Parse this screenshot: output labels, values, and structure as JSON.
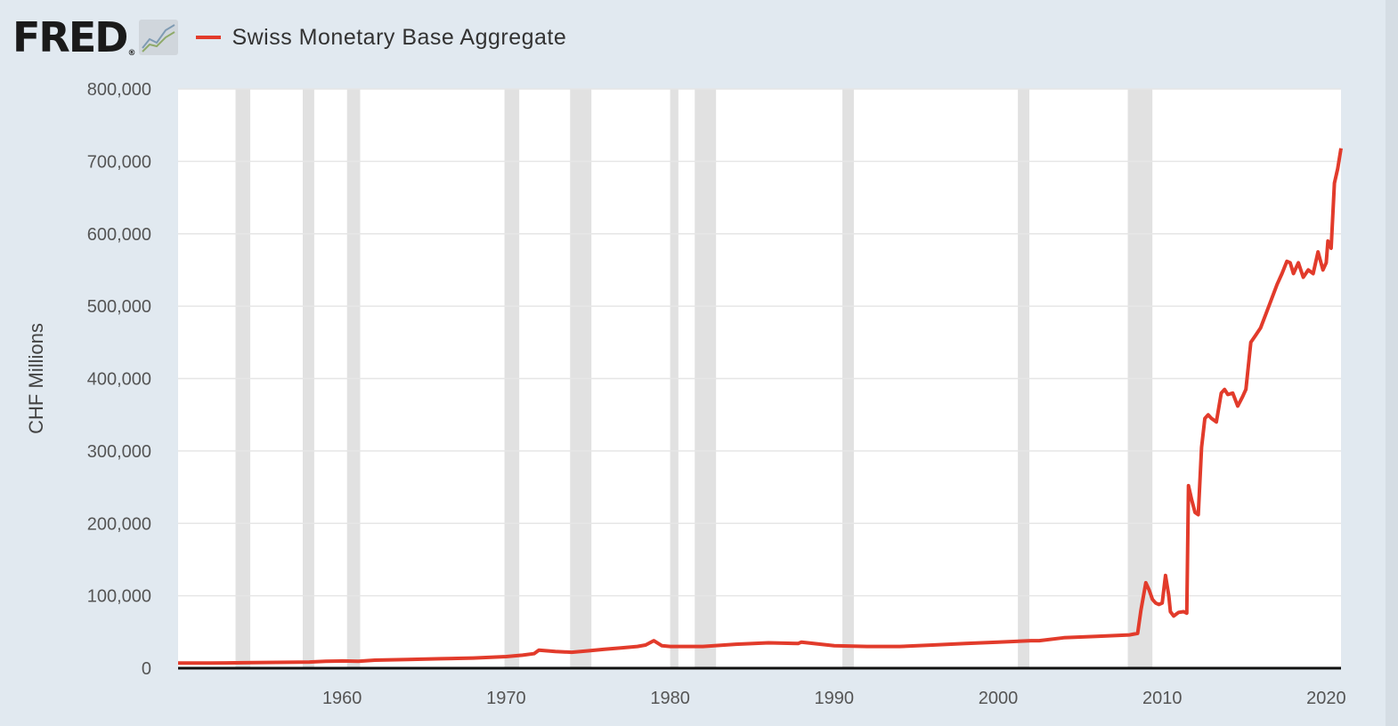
{
  "header": {
    "logo_text": "FRED",
    "logo_reg": "®",
    "logo_icon": "trend-graph-icon",
    "legend_label": "Swiss Monetary Base Aggregate"
  },
  "colors": {
    "background": "#e1e9f0",
    "plot_bg": "#ffffff",
    "line": "#e23b2b",
    "recession": "#e1e1e1",
    "grid": "#e6e6e6"
  },
  "chart_data": {
    "type": "line",
    "title": "",
    "xlabel": "",
    "ylabel": "CHF Millions",
    "xlim": [
      1950.0,
      2020.9
    ],
    "ylim": [
      0,
      800000
    ],
    "y_ticks": [
      0,
      100000,
      200000,
      300000,
      400000,
      500000,
      600000,
      700000,
      800000
    ],
    "y_tick_labels": [
      "0",
      "100,000",
      "200,000",
      "300,000",
      "400,000",
      "500,000",
      "600,000",
      "700,000",
      "800,000"
    ],
    "x_ticks": [
      1960,
      1970,
      1980,
      1990,
      2000,
      2010,
      2020
    ],
    "x_tick_labels": [
      "1960",
      "1970",
      "1980",
      "1990",
      "2000",
      "2010",
      "2020"
    ],
    "grid": true,
    "legend_position": "top-left",
    "recessions": [
      [
        1953.5,
        1954.4
      ],
      [
        1957.6,
        1958.3
      ],
      [
        1960.3,
        1961.1
      ],
      [
        1969.9,
        1970.8
      ],
      [
        1973.9,
        1975.2
      ],
      [
        1980.0,
        1980.5
      ],
      [
        1981.5,
        1982.8
      ],
      [
        1990.5,
        1991.2
      ],
      [
        2001.2,
        2001.9
      ],
      [
        2007.9,
        2009.4
      ]
    ],
    "series": [
      {
        "name": "Swiss Monetary Base Aggregate",
        "x": [
          1950.0,
          1952.0,
          1954.0,
          1956.0,
          1958.0,
          1959.0,
          1960.0,
          1961.0,
          1962.0,
          1964.0,
          1966.0,
          1968.0,
          1970.0,
          1971.0,
          1971.7,
          1972.0,
          1973.0,
          1974.0,
          1975.0,
          1976.0,
          1977.0,
          1978.0,
          1978.5,
          1979.0,
          1979.5,
          1980.0,
          1982.0,
          1984.0,
          1986.0,
          1987.8,
          1988.0,
          1990.0,
          1992.0,
          1994.0,
          1996.0,
          1998.0,
          2000.0,
          2002.0,
          2002.5,
          2004.0,
          2006.0,
          2008.0,
          2008.5,
          2008.7,
          2009.0,
          2009.2,
          2009.4,
          2009.6,
          2009.8,
          2010.0,
          2010.2,
          2010.4,
          2010.5,
          2010.7,
          2011.0,
          2011.3,
          2011.5,
          2011.6,
          2011.8,
          2012.0,
          2012.2,
          2012.4,
          2012.6,
          2012.8,
          2013.0,
          2013.3,
          2013.6,
          2013.8,
          2014.0,
          2014.3,
          2014.6,
          2014.9,
          2015.0,
          2015.1,
          2015.4,
          2015.7,
          2016.0,
          2016.5,
          2017.0,
          2017.3,
          2017.6,
          2017.8,
          2018.0,
          2018.3,
          2018.6,
          2018.9,
          2019.2,
          2019.5,
          2019.8,
          2020.0,
          2020.1,
          2020.3,
          2020.5,
          2020.7,
          2020.9
        ],
        "y": [
          7000,
          7000,
          7500,
          8000,
          8500,
          9500,
          10000,
          9500,
          11000,
          12000,
          13000,
          14000,
          16000,
          18000,
          20000,
          25000,
          23000,
          22000,
          24000,
          26000,
          28000,
          30000,
          32000,
          38000,
          31000,
          30000,
          30000,
          33000,
          35000,
          34000,
          36000,
          31000,
          30000,
          30000,
          32000,
          34000,
          36000,
          38000,
          38000,
          42000,
          44000,
          46000,
          48000,
          80000,
          118000,
          108000,
          95000,
          90000,
          88000,
          90000,
          128000,
          100000,
          78000,
          72000,
          77000,
          78000,
          76000,
          252000,
          232000,
          215000,
          212000,
          305000,
          345000,
          350000,
          345000,
          340000,
          380000,
          385000,
          378000,
          380000,
          362000,
          375000,
          380000,
          385000,
          450000,
          460000,
          470000,
          500000,
          530000,
          545000,
          562000,
          560000,
          545000,
          560000,
          540000,
          550000,
          545000,
          575000,
          550000,
          560000,
          590000,
          580000,
          670000,
          690000,
          718000
        ]
      }
    ]
  }
}
